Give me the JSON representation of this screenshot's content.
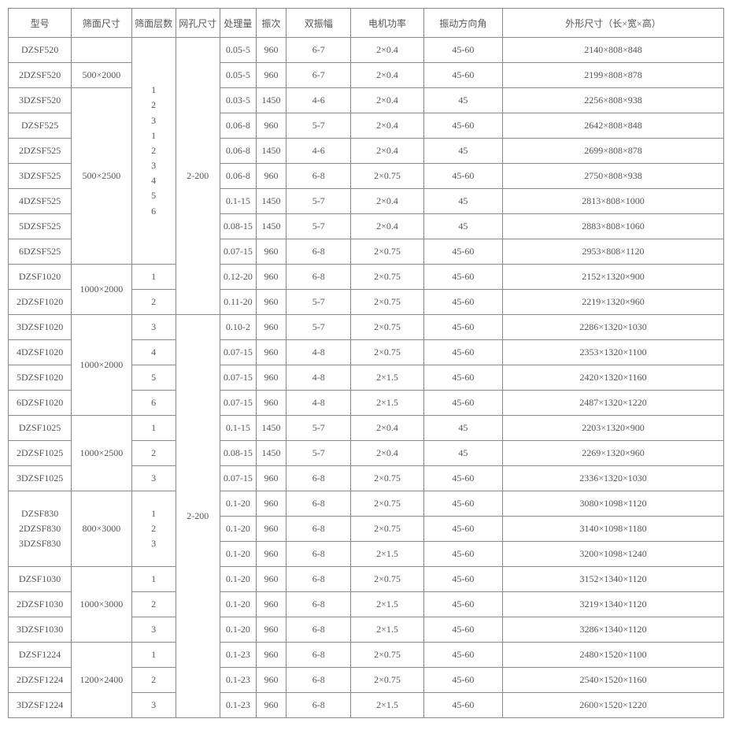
{
  "headers": [
    "型号",
    "筛面尺寸",
    "筛面层数",
    "网孔尺寸",
    "处理量",
    "振次",
    "双振幅",
    "电机功率",
    "振动方向角",
    "外形尺寸（长×宽×高）"
  ],
  "merged": {
    "layers_block1": "1\n2\n3\n1\n2\n3\n4\n5\n6",
    "mesh_block1": "2-200",
    "mesh_block2": "2-200",
    "size_500x2000": "500×2000",
    "size_500x2500": "500×2500",
    "size_1000x2000a": "1000×2000",
    "size_1000x2000b": "1000×2000",
    "size_1000x2500": "1000×2500",
    "size_800x3000": "800×3000",
    "size_1000x3000": "1000×3000",
    "size_1200x2400": "1200×2400",
    "model_830": "DZSF830\n2DZSF830\n3DZSF830",
    "layers_830": "1\n2\n3"
  },
  "rows": [
    {
      "model": "DZSF520",
      "proc": "0.05-5",
      "freq": "960",
      "amp": "6-7",
      "power": "2×0.4",
      "angle": "45-60",
      "dim": "2140×808×848"
    },
    {
      "model": "2DZSF520",
      "proc": "0.05-5",
      "freq": "960",
      "amp": "6-7",
      "power": "2×0.4",
      "angle": "45-60",
      "dim": "2199×808×878"
    },
    {
      "model": "3DZSF520",
      "proc": "0.03-5",
      "freq": "1450",
      "amp": "4-6",
      "power": "2×0.4",
      "angle": "45",
      "dim": "2256×808×938"
    },
    {
      "model": "DZSF525",
      "proc": "0.06-8",
      "freq": "960",
      "amp": "5-7",
      "power": "2×0.4",
      "angle": "45-60",
      "dim": "2642×808×848"
    },
    {
      "model": "2DZSF525",
      "proc": "0.06-8",
      "freq": "1450",
      "amp": "4-6",
      "power": "2×0.4",
      "angle": "45",
      "dim": "2699×808×878"
    },
    {
      "model": "3DZSF525",
      "proc": "0.06-8",
      "freq": "960",
      "amp": "6-8",
      "power": "2×0.75",
      "angle": "45-60",
      "dim": "2750×808×938"
    },
    {
      "model": "4DZSF525",
      "proc": "0.1-15",
      "freq": "1450",
      "amp": "5-7",
      "power": "2×0.4",
      "angle": "45",
      "dim": "2813×808×1000"
    },
    {
      "model": "5DZSF525",
      "proc": "0.08-15",
      "freq": "1450",
      "amp": "5-7",
      "power": "2×0.4",
      "angle": "45",
      "dim": "2883×808×1060"
    },
    {
      "model": "6DZSF525",
      "proc": "0.07-15",
      "freq": "960",
      "amp": "6-8",
      "power": "2×0.75",
      "angle": "45-60",
      "dim": "2953×808×1120"
    },
    {
      "model": "DZSF1020",
      "layer": "1",
      "proc": "0.12-20",
      "freq": "960",
      "amp": "6-8",
      "power": "2×0.75",
      "angle": "45-60",
      "dim": "2152×1320×900"
    },
    {
      "model": "2DZSF1020",
      "layer": "2",
      "proc": "0.11-20",
      "freq": "960",
      "amp": "5-7",
      "power": "2×0.75",
      "angle": "45-60",
      "dim": "2219×1320×960"
    },
    {
      "model": "3DZSF1020",
      "layer": "3",
      "proc": "0.10-2",
      "freq": "960",
      "amp": "5-7",
      "power": "2×0.75",
      "angle": "45-60",
      "dim": "2286×1320×1030"
    },
    {
      "model": "4DZSF1020",
      "layer": "4",
      "proc": "0.07-15",
      "freq": "960",
      "amp": "4-8",
      "power": "2×0.75",
      "angle": "45-60",
      "dim": "2353×1320×1100"
    },
    {
      "model": "5DZSF1020",
      "layer": "5",
      "proc": "0.07-15",
      "freq": "960",
      "amp": "4-8",
      "power": "2×1.5",
      "angle": "45-60",
      "dim": "2420×1320×1160"
    },
    {
      "model": "6DZSF1020",
      "layer": "6",
      "proc": "0.07-15",
      "freq": "960",
      "amp": "4-8",
      "power": "2×1.5",
      "angle": "45-60",
      "dim": "2487×1320×1220"
    },
    {
      "model": "DZSF1025",
      "layer": "1",
      "proc": "0.1-15",
      "freq": "1450",
      "amp": "5-7",
      "power": "2×0.4",
      "angle": "45",
      "dim": "2203×1320×900"
    },
    {
      "model": "2DZSF1025",
      "layer": "2",
      "proc": "0.08-15",
      "freq": "1450",
      "amp": "5-7",
      "power": "2×0.4",
      "angle": "45",
      "dim": "2269×1320×960"
    },
    {
      "model": "3DZSF1025",
      "layer": "3",
      "proc": "0.07-15",
      "freq": "960",
      "amp": "6-8",
      "power": "2×0.75",
      "angle": "45-60",
      "dim": "2336×1320×1030"
    },
    {
      "proc": "0.1-20",
      "freq": "960",
      "amp": "6-8",
      "power": "2×0.75",
      "angle": "45-60",
      "dim": "3080×1098×1120"
    },
    {
      "proc": "0.1-20",
      "freq": "960",
      "amp": "6-8",
      "power": "2×0.75",
      "angle": "45-60",
      "dim": "3140×1098×1180"
    },
    {
      "proc": "0.1-20",
      "freq": "960",
      "amp": "6-8",
      "power": "2×1.5",
      "angle": "45-60",
      "dim": "3200×1098×1240"
    },
    {
      "model": "DZSF1030",
      "layer": "1",
      "proc": "0.1-20",
      "freq": "960",
      "amp": "6-8",
      "power": "2×0.75",
      "angle": "45-60",
      "dim": "3152×1340×1120"
    },
    {
      "model": "2DZSF1030",
      "layer": "2",
      "proc": "0.1-20",
      "freq": "960",
      "amp": "6-8",
      "power": "2×1.5",
      "angle": "45-60",
      "dim": "3219×1340×1120"
    },
    {
      "model": "3DZSF1030",
      "layer": "3",
      "proc": "0.1-20",
      "freq": "960",
      "amp": "6-8",
      "power": "2×1.5",
      "angle": "45-60",
      "dim": "3286×1340×1120"
    },
    {
      "model": "DZSF1224",
      "layer": "1",
      "proc": "0.1-23",
      "freq": "960",
      "amp": "6-8",
      "power": "2×0.75",
      "angle": "45-60",
      "dim": "2480×1520×1100"
    },
    {
      "model": "2DZSF1224",
      "layer": "2",
      "proc": "0.1-23",
      "freq": "960",
      "amp": "6-8",
      "power": "2×0.75",
      "angle": "45-60",
      "dim": "2540×1520×1160"
    },
    {
      "model": "3DZSF1224",
      "layer": "3",
      "proc": "0.1-23",
      "freq": "960",
      "amp": "6-8",
      "power": "2×1.5",
      "angle": "45-60",
      "dim": "2600×1520×1220"
    }
  ]
}
